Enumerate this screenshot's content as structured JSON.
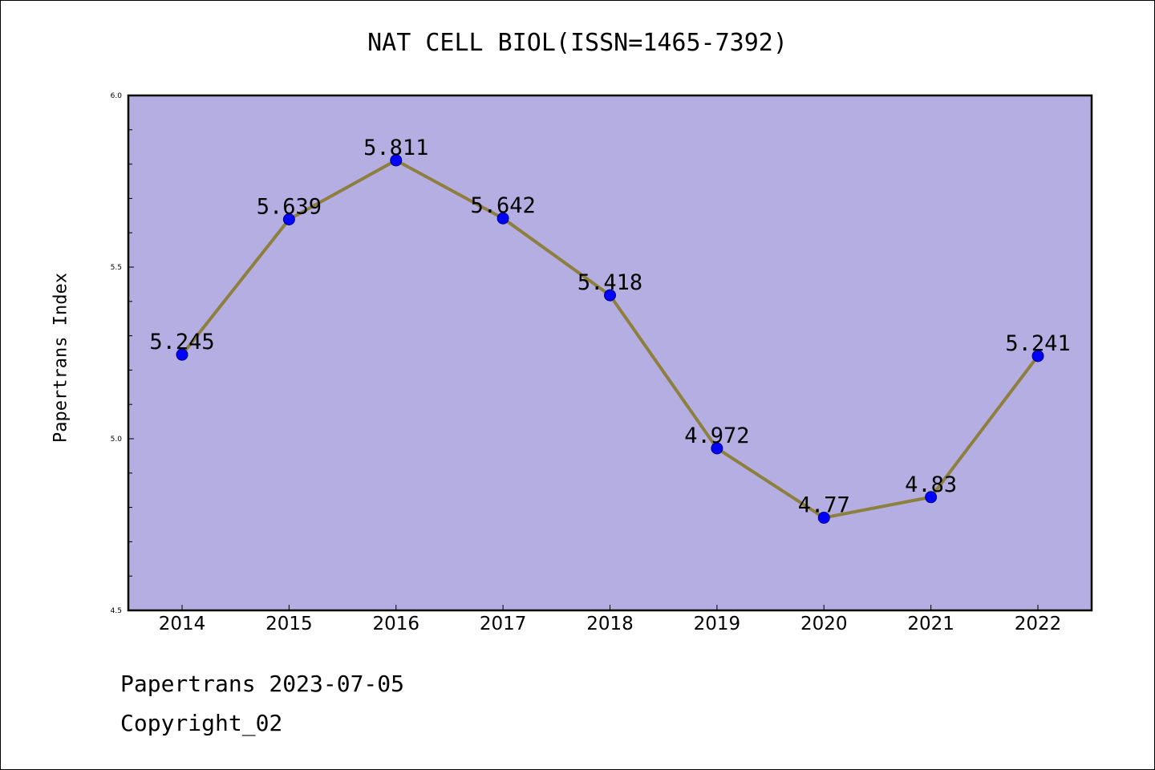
{
  "chart_data": {
    "type": "line",
    "title": "NAT CELL BIOL(ISSN=1465-7392)",
    "ylabel": "Papertrans Index",
    "xlabel": "",
    "categories": [
      "2014",
      "2015",
      "2016",
      "2017",
      "2018",
      "2019",
      "2020",
      "2021",
      "2022"
    ],
    "values": [
      5.245,
      5.639,
      5.811,
      5.642,
      5.418,
      4.972,
      4.77,
      4.83,
      5.241
    ],
    "value_labels": [
      "5.245",
      "5.639",
      "5.811",
      "5.642",
      "5.418",
      "4.972",
      "4.77",
      "4.83",
      "5.241"
    ],
    "ylim": [
      4.5,
      6.0
    ],
    "yticks": [
      "4.5",
      "5.0",
      "5.5",
      "6.0"
    ],
    "grid": false,
    "colors": {
      "plot_background": "#b5aee2",
      "line": "#8d7f3e",
      "marker": "#0000ff"
    }
  },
  "footer": {
    "date_line": "Papertrans 2023-07-05",
    "copyright_line": "Copyright_02"
  }
}
